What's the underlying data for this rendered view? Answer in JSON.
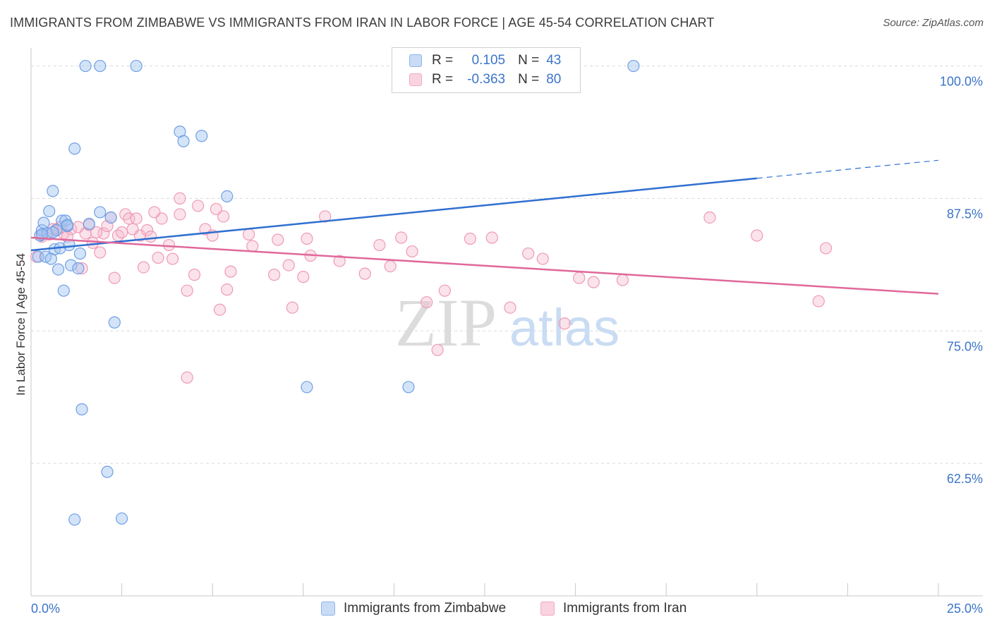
{
  "title": "IMMIGRANTS FROM ZIMBABWE VS IMMIGRANTS FROM IRAN IN LABOR FORCE | AGE 45-54 CORRELATION CHART",
  "source": "Source: ZipAtlas.com",
  "watermark": {
    "zip": "ZIP",
    "atlas": "atlas"
  },
  "legend": [
    {
      "r_label": "R =",
      "r_value": "0.105",
      "n_label": "N =",
      "n_value": "43",
      "color": "#8fb4ea"
    },
    {
      "r_label": "R =",
      "r_value": "-0.363",
      "n_label": "N =",
      "n_value": "80",
      "color": "#f2a9c0"
    }
  ],
  "chart_data": {
    "type": "scatter",
    "title": "IMMIGRANTS FROM ZIMBABWE VS IMMIGRANTS FROM IRAN IN LABOR FORCE | AGE 45-54 CORRELATION CHART",
    "xlabel": "",
    "ylabel": "In Labor Force | Age 45-54",
    "xlim": [
      0,
      25
    ],
    "ylim": [
      50,
      101.7
    ],
    "x_tick_labels": [
      "0.0%",
      "25.0%"
    ],
    "y_ticks": [
      62.5,
      75.0,
      87.5,
      100.0
    ],
    "y_tick_labels": [
      "62.5%",
      "75.0%",
      "87.5%",
      "100.0%"
    ],
    "grid": true,
    "series": [
      {
        "name": "Immigrants from Zimbabwe",
        "color": "#6f9fe6",
        "trend": {
          "x0": 0,
          "y0": 82.6,
          "x1": 20,
          "y1": 89.4,
          "x_dash_end": 25,
          "y_dash_end": 91.1
        },
        "points": [
          [
            0.2,
            82.0
          ],
          [
            0.25,
            84.0
          ],
          [
            0.3,
            84.5
          ],
          [
            0.35,
            85.2
          ],
          [
            0.4,
            82.0
          ],
          [
            0.45,
            84.2
          ],
          [
            0.5,
            86.3
          ],
          [
            0.55,
            81.8
          ],
          [
            0.6,
            88.2
          ],
          [
            0.65,
            82.7
          ],
          [
            0.7,
            84.5
          ],
          [
            0.75,
            80.8
          ],
          [
            0.8,
            82.8
          ],
          [
            0.85,
            85.4
          ],
          [
            0.9,
            78.8
          ],
          [
            0.95,
            85.4
          ],
          [
            1.0,
            84.9
          ],
          [
            1.05,
            83.1
          ],
          [
            1.1,
            81.2
          ],
          [
            1.2,
            92.2
          ],
          [
            1.3,
            80.9
          ],
          [
            1.35,
            82.3
          ],
          [
            1.4,
            67.6
          ],
          [
            1.2,
            57.2
          ],
          [
            1.6,
            85.1
          ],
          [
            1.5,
            100.0
          ],
          [
            1.9,
            100.0
          ],
          [
            1.9,
            86.2
          ],
          [
            2.1,
            61.7
          ],
          [
            2.2,
            85.7
          ],
          [
            2.3,
            75.8
          ],
          [
            2.5,
            57.3
          ],
          [
            2.9,
            100.0
          ],
          [
            4.1,
            93.8
          ],
          [
            4.2,
            92.9
          ],
          [
            4.7,
            93.4
          ],
          [
            5.4,
            87.7
          ],
          [
            7.6,
            69.7
          ],
          [
            10.4,
            69.7
          ],
          [
            16.6,
            100.0
          ],
          [
            0.3,
            84.1
          ],
          [
            1.0,
            85.0
          ],
          [
            0.6,
            84.3
          ]
        ]
      },
      {
        "name": "Immigrants from Iran",
        "color": "#ef9ab5",
        "trend": {
          "x0": 0,
          "y0": 83.8,
          "x1": 25,
          "y1": 78.5
        },
        "points": [
          [
            0.15,
            82.0
          ],
          [
            0.3,
            83.9
          ],
          [
            0.5,
            84.1
          ],
          [
            0.7,
            84.6
          ],
          [
            0.9,
            84.2
          ],
          [
            1.1,
            84.6
          ],
          [
            1.3,
            84.8
          ],
          [
            1.4,
            80.9
          ],
          [
            1.5,
            84.2
          ],
          [
            1.6,
            85.0
          ],
          [
            1.7,
            83.3
          ],
          [
            1.9,
            82.4
          ],
          [
            2.0,
            84.2
          ],
          [
            2.1,
            84.9
          ],
          [
            2.2,
            85.7
          ],
          [
            2.3,
            80.0
          ],
          [
            2.4,
            84.0
          ],
          [
            2.5,
            84.3
          ],
          [
            2.6,
            86.0
          ],
          [
            2.7,
            85.6
          ],
          [
            2.9,
            85.6
          ],
          [
            3.0,
            84.0
          ],
          [
            3.1,
            81.0
          ],
          [
            3.2,
            84.5
          ],
          [
            3.4,
            86.2
          ],
          [
            3.5,
            81.9
          ],
          [
            3.6,
            85.6
          ],
          [
            3.8,
            83.1
          ],
          [
            3.9,
            81.8
          ],
          [
            4.1,
            87.5
          ],
          [
            4.1,
            86.0
          ],
          [
            4.3,
            78.8
          ],
          [
            4.3,
            70.6
          ],
          [
            4.5,
            80.3
          ],
          [
            4.6,
            86.8
          ],
          [
            4.8,
            84.6
          ],
          [
            5.0,
            84.0
          ],
          [
            5.1,
            86.5
          ],
          [
            5.2,
            77.0
          ],
          [
            5.3,
            85.8
          ],
          [
            5.4,
            78.9
          ],
          [
            5.5,
            80.6
          ],
          [
            6.1,
            83.0
          ],
          [
            6.7,
            80.3
          ],
          [
            6.8,
            83.6
          ],
          [
            7.1,
            81.2
          ],
          [
            7.2,
            77.2
          ],
          [
            7.5,
            80.1
          ],
          [
            7.6,
            83.7
          ],
          [
            7.7,
            82.1
          ],
          [
            8.1,
            85.8
          ],
          [
            8.5,
            81.6
          ],
          [
            9.2,
            80.4
          ],
          [
            9.6,
            83.1
          ],
          [
            9.9,
            81.1
          ],
          [
            10.2,
            83.8
          ],
          [
            10.5,
            82.5
          ],
          [
            10.9,
            77.7
          ],
          [
            11.2,
            73.2
          ],
          [
            11.4,
            78.8
          ],
          [
            12.1,
            83.7
          ],
          [
            12.7,
            83.8
          ],
          [
            13.2,
            77.2
          ],
          [
            13.7,
            82.3
          ],
          [
            14.1,
            81.8
          ],
          [
            14.7,
            75.7
          ],
          [
            15.1,
            80.0
          ],
          [
            15.5,
            79.6
          ],
          [
            16.3,
            79.8
          ],
          [
            18.7,
            85.7
          ],
          [
            20.0,
            84.0
          ],
          [
            21.7,
            77.8
          ],
          [
            21.9,
            82.8
          ],
          [
            1.0,
            83.9
          ],
          [
            0.8,
            84.8
          ],
          [
            0.6,
            84.6
          ],
          [
            1.8,
            84.3
          ],
          [
            2.8,
            84.6
          ],
          [
            3.3,
            83.9
          ],
          [
            6.0,
            84.1
          ]
        ]
      }
    ]
  },
  "bottom_legend": [
    {
      "label": "Immigrants from Zimbabwe",
      "color": "#8fb4ea"
    },
    {
      "label": "Immigrants from Iran",
      "color": "#f2a9c0"
    }
  ]
}
